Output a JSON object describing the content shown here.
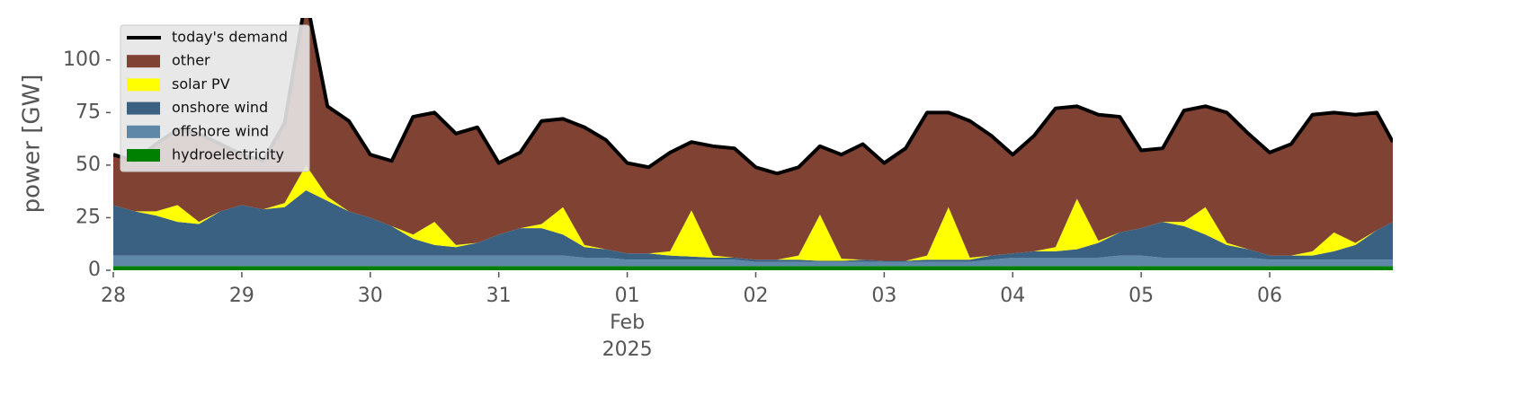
{
  "chart_data": {
    "type": "stacked-area",
    "ylabel": "power [GW]",
    "x": [
      "2025-01-28T00:00",
      "2025-01-28T04:00",
      "2025-01-28T08:00",
      "2025-01-28T12:00",
      "2025-01-28T16:00",
      "2025-01-28T20:00",
      "2025-01-29T00:00",
      "2025-01-29T04:00",
      "2025-01-29T08:00",
      "2025-01-29T12:00",
      "2025-01-29T16:00",
      "2025-01-29T20:00",
      "2025-01-30T00:00",
      "2025-01-30T04:00",
      "2025-01-30T08:00",
      "2025-01-30T12:00",
      "2025-01-30T16:00",
      "2025-01-30T20:00",
      "2025-01-31T00:00",
      "2025-01-31T04:00",
      "2025-01-31T08:00",
      "2025-01-31T12:00",
      "2025-01-31T16:00",
      "2025-01-31T20:00",
      "2025-02-01T00:00",
      "2025-02-01T04:00",
      "2025-02-01T08:00",
      "2025-02-01T12:00",
      "2025-02-01T16:00",
      "2025-02-01T20:00",
      "2025-02-02T00:00",
      "2025-02-02T04:00",
      "2025-02-02T08:00",
      "2025-02-02T12:00",
      "2025-02-02T16:00",
      "2025-02-02T20:00",
      "2025-02-03T00:00",
      "2025-02-03T04:00",
      "2025-02-03T08:00",
      "2025-02-03T12:00",
      "2025-02-03T16:00",
      "2025-02-03T20:00",
      "2025-02-04T00:00",
      "2025-02-04T04:00",
      "2025-02-04T08:00",
      "2025-02-04T12:00",
      "2025-02-04T16:00",
      "2025-02-04T20:00",
      "2025-02-05T00:00",
      "2025-02-05T04:00",
      "2025-02-05T08:00",
      "2025-02-05T12:00",
      "2025-02-05T16:00",
      "2025-02-05T20:00",
      "2025-02-06T00:00",
      "2025-02-06T04:00",
      "2025-02-06T08:00",
      "2025-02-06T12:00",
      "2025-02-06T16:00",
      "2025-02-06T20:00",
      "2025-02-06T23:00"
    ],
    "line": {
      "name": "today's demand",
      "color": "#000000",
      "values": [
        55,
        52,
        60,
        67,
        65,
        60,
        55,
        52,
        70,
        130,
        78,
        71,
        55,
        52,
        73,
        75,
        65,
        68,
        51,
        56,
        71,
        72,
        68,
        62,
        51,
        49,
        56,
        61,
        59,
        58,
        49,
        46,
        49,
        59,
        55,
        60,
        51,
        58,
        75,
        75,
        71,
        64,
        55,
        64,
        77,
        78,
        74,
        73,
        57,
        58,
        76,
        78,
        75,
        65,
        56,
        60,
        74,
        75,
        74,
        75,
        61
      ]
    },
    "series": [
      {
        "name": "other",
        "color": "#804233",
        "values": [
          24,
          24,
          32,
          36,
          42,
          32,
          24,
          23,
          38,
          80,
          43,
          43,
          30,
          31,
          56,
          52,
          53,
          55,
          34,
          36,
          49,
          42,
          56,
          52,
          43,
          41,
          47,
          32.5,
          52,
          52,
          44,
          41,
          42,
          32.5,
          49.5,
          55,
          46.5,
          53.5,
          68,
          45,
          65,
          57,
          47,
          55,
          66,
          44,
          60,
          55,
          37,
          35,
          53,
          48,
          62,
          55,
          49,
          53,
          65,
          57,
          61,
          56,
          38
        ]
      },
      {
        "name": "solar PV",
        "color": "#ffff00",
        "values": [
          0,
          0,
          2,
          8,
          1,
          0,
          0,
          0,
          2,
          12,
          2,
          0,
          0,
          0,
          2,
          11,
          1,
          0,
          0,
          0,
          2,
          13,
          1,
          0,
          0,
          0,
          2,
          22,
          1,
          0,
          0,
          0,
          2,
          22,
          1,
          0,
          0,
          0,
          2,
          25,
          1,
          0,
          0,
          0,
          2,
          24,
          1,
          0,
          0,
          0,
          2,
          13,
          1,
          0,
          0,
          0,
          2,
          9,
          1,
          0,
          0
        ]
      },
      {
        "name": "onshore wind",
        "color": "#3b6182",
        "values": [
          24,
          21,
          19,
          16,
          15,
          21,
          24,
          22,
          23,
          31,
          26,
          21,
          18,
          14,
          8,
          5,
          4,
          6,
          10,
          13,
          13,
          10,
          5,
          4,
          3,
          3,
          2,
          1.5,
          1,
          1,
          1,
          1,
          1,
          0.5,
          0.5,
          1,
          0.5,
          0.5,
          1,
          1,
          1,
          2,
          2,
          3,
          3,
          4,
          7,
          11,
          13,
          17,
          15,
          11,
          6,
          4,
          2,
          2,
          2,
          4,
          7,
          14,
          18
        ]
      },
      {
        "name": "offshore wind",
        "color": "#5e87a8",
        "values": [
          5,
          5,
          5,
          5,
          5,
          5,
          5,
          5,
          5,
          5,
          5,
          5,
          5,
          5,
          5,
          5,
          5,
          5,
          5,
          5,
          5,
          5,
          4,
          4,
          3,
          3,
          3,
          3,
          3,
          3,
          2,
          2,
          2,
          2,
          2,
          2,
          2,
          2,
          2,
          2,
          2,
          3,
          4,
          4,
          4,
          4,
          4,
          5,
          5,
          4,
          4,
          4,
          4,
          4,
          3,
          3,
          3,
          3,
          3,
          3,
          3
        ]
      },
      {
        "name": "hydroelectricity",
        "color": "#008000",
        "values": [
          2,
          2,
          2,
          2,
          2,
          2,
          2,
          2,
          2,
          2,
          2,
          2,
          2,
          2,
          2,
          2,
          2,
          2,
          2,
          2,
          2,
          2,
          2,
          2,
          2,
          2,
          2,
          2,
          2,
          2,
          2,
          2,
          2,
          2,
          2,
          2,
          2,
          2,
          2,
          2,
          2,
          2,
          2,
          2,
          2,
          2,
          2,
          2,
          2,
          2,
          2,
          2,
          2,
          2,
          2,
          2,
          2,
          2,
          2,
          2,
          2
        ]
      }
    ],
    "xlim": [
      "2025-01-28T00:00",
      "2025-02-06T23:00"
    ],
    "xticks": [
      {
        "value": "2025-01-28T00:00",
        "label": "28"
      },
      {
        "value": "2025-01-29T00:00",
        "label": "29"
      },
      {
        "value": "2025-01-30T00:00",
        "label": "30"
      },
      {
        "value": "2025-01-31T00:00",
        "label": "31"
      },
      {
        "value": "2025-02-01T00:00",
        "label": "01\nFeb\n2025"
      },
      {
        "value": "2025-02-02T00:00",
        "label": "02"
      },
      {
        "value": "2025-02-03T00:00",
        "label": "03"
      },
      {
        "value": "2025-02-04T00:00",
        "label": "04"
      },
      {
        "value": "2025-02-05T00:00",
        "label": "05"
      },
      {
        "value": "2025-02-06T00:00",
        "label": "06"
      }
    ],
    "ylim": [
      0,
      120
    ],
    "yticks": [
      0,
      25,
      50,
      75,
      100
    ],
    "legend": "upper left"
  }
}
